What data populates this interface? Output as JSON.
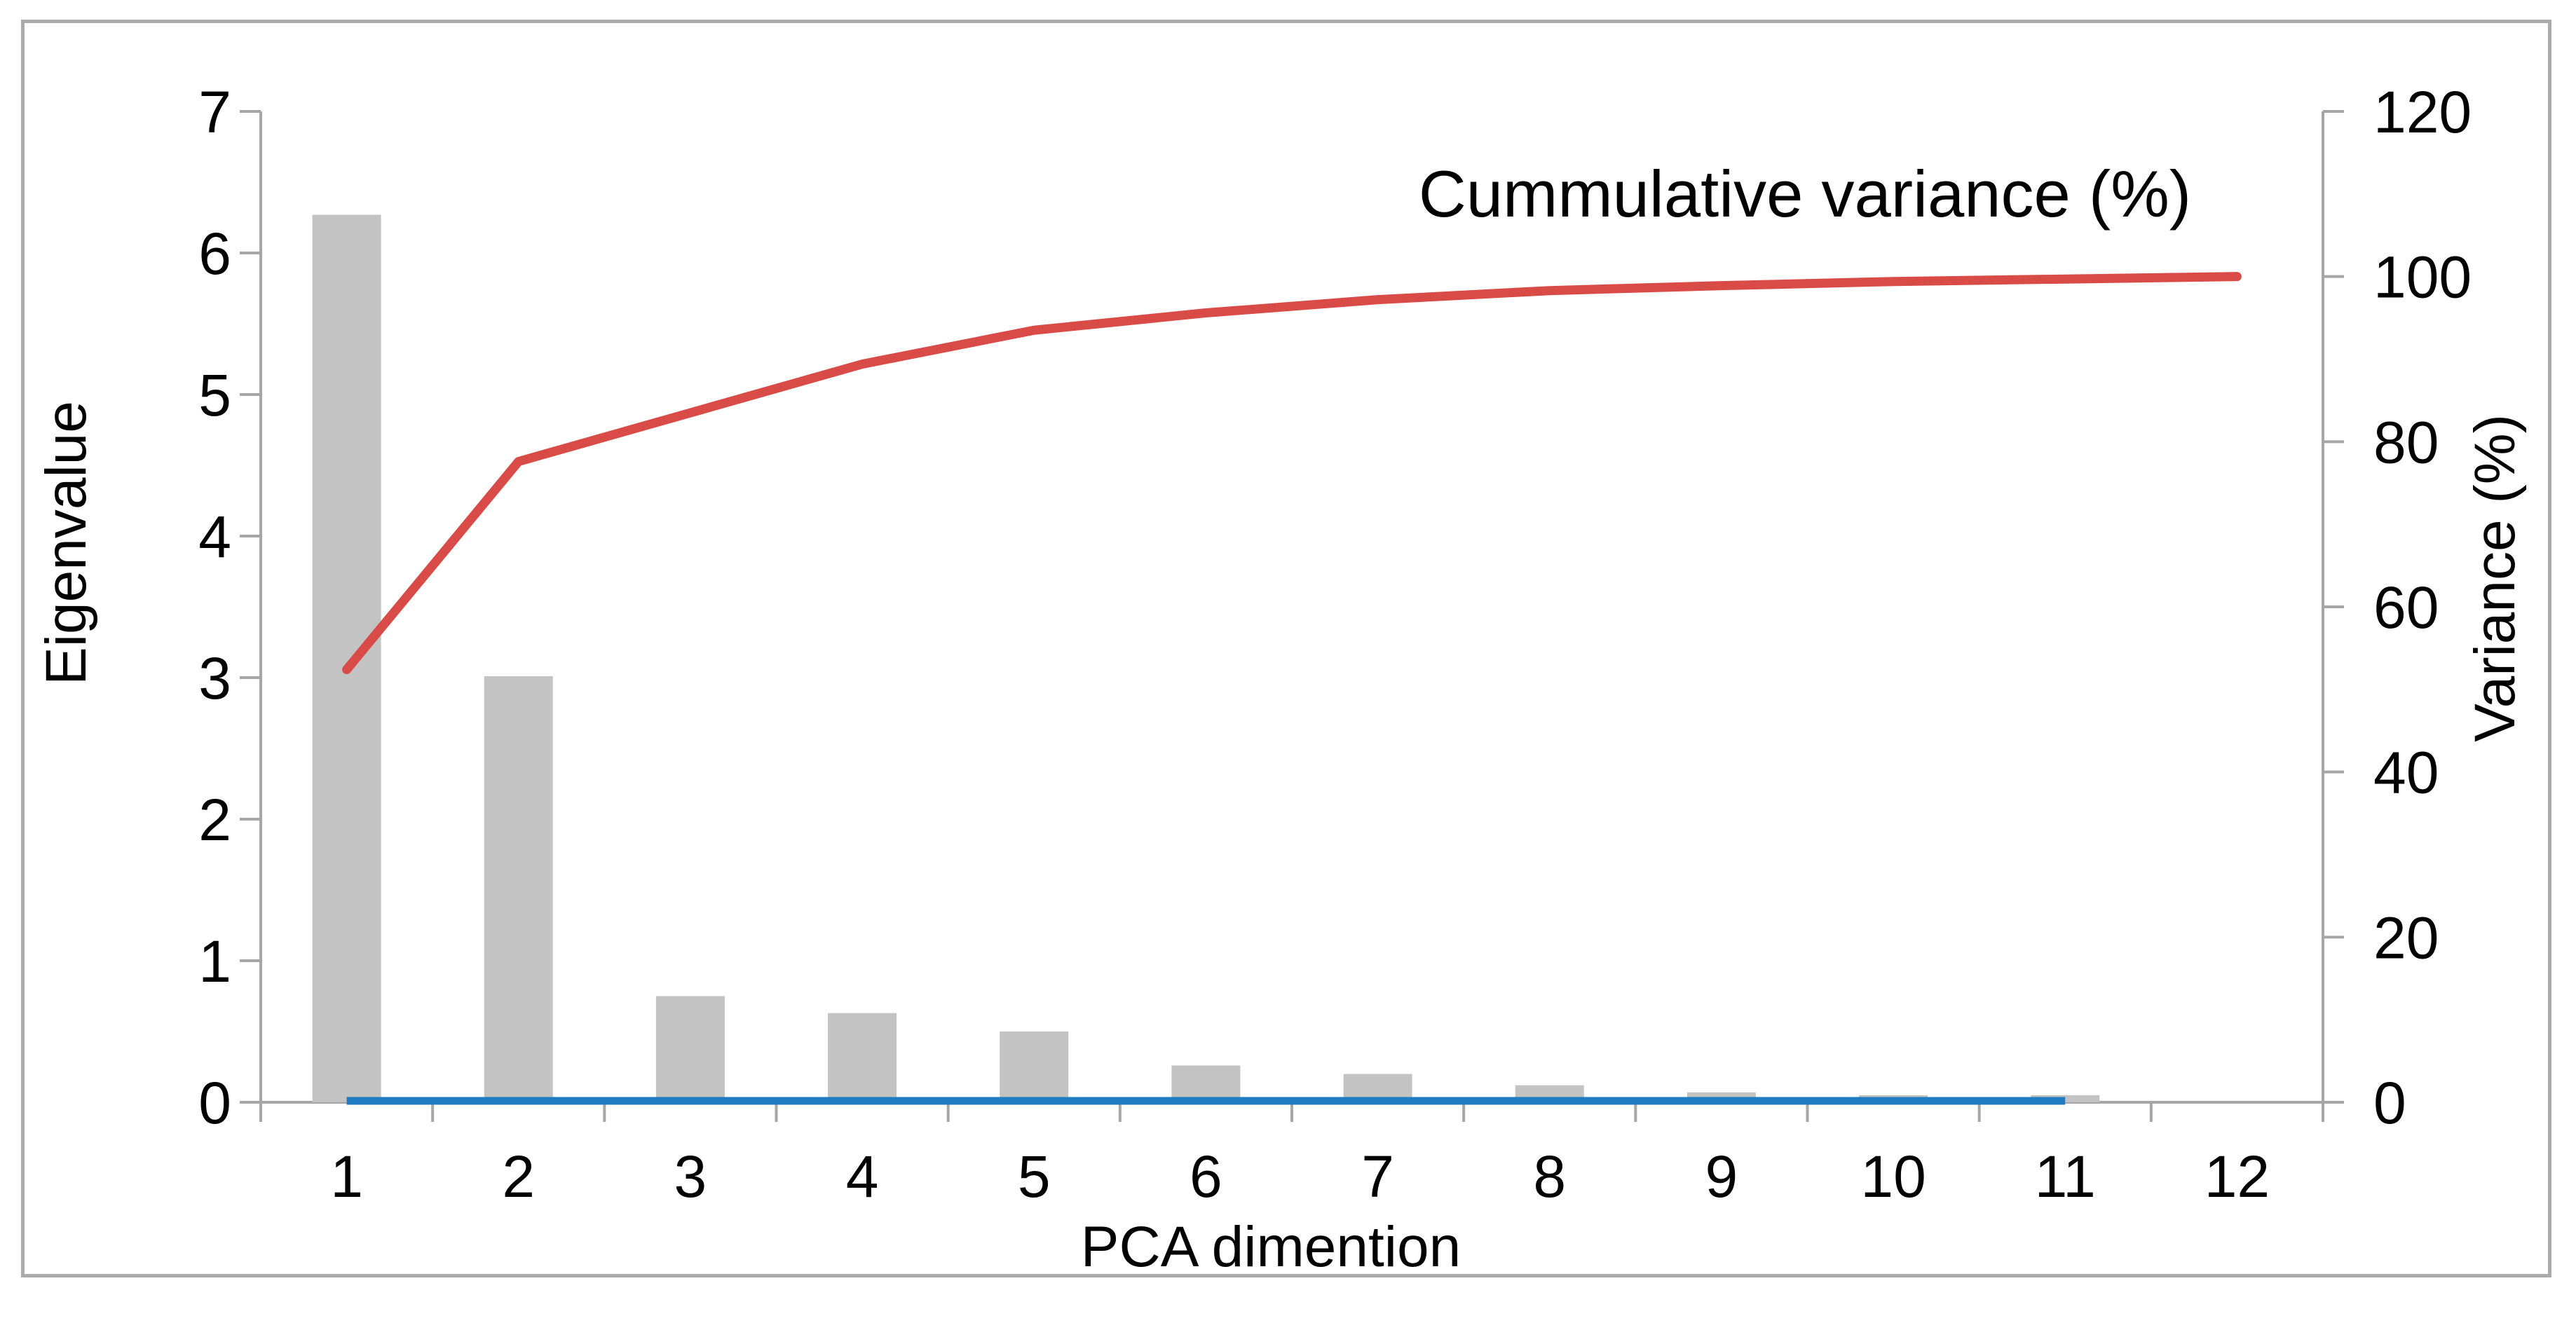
{
  "figure": {
    "title": "Cummulative variance (%)",
    "y_left_label": "Eigenvalue",
    "y_right_label": "Variance (%)",
    "x_label": "PCA dimention"
  },
  "chart_data": {
    "type": "combo",
    "categories": [
      "1",
      "2",
      "3",
      "4",
      "5",
      "6",
      "7",
      "8",
      "9",
      "10",
      "11",
      "12"
    ],
    "series": [
      {
        "name": "Eigenvalue",
        "type": "bar",
        "axis": "left",
        "values": [
          6.27,
          3.01,
          0.75,
          0.63,
          0.5,
          0.26,
          0.2,
          0.12,
          0.07,
          0.05,
          0.05,
          0.0
        ]
      },
      {
        "name": "Cummulative variance (%)",
        "type": "line",
        "axis": "right",
        "values": [
          52.4,
          77.6,
          83.5,
          89.4,
          93.5,
          95.6,
          97.2,
          98.3,
          98.9,
          99.4,
          99.7,
          100.0
        ]
      },
      {
        "name": "zero-baseline",
        "type": "line",
        "axis": "left",
        "span_categories": [
          1,
          11
        ],
        "values": [
          0,
          0,
          0,
          0,
          0,
          0,
          0,
          0,
          0,
          0,
          0
        ]
      }
    ],
    "axes": {
      "left": {
        "label": "Eigenvalue",
        "min": 0,
        "max": 7,
        "step": 1,
        "tick_labels": [
          "0",
          "1",
          "2",
          "3",
          "4",
          "5",
          "6",
          "7"
        ]
      },
      "right": {
        "label": "Variance (%)",
        "min": 0,
        "max": 120,
        "step": 20,
        "tick_labels": [
          "0",
          "20",
          "40",
          "60",
          "80",
          "100",
          "120"
        ]
      },
      "x": {
        "label": "PCA dimention",
        "tick_labels": [
          "1",
          "2",
          "3",
          "4",
          "5",
          "6",
          "7",
          "8",
          "9",
          "10",
          "11",
          "12"
        ]
      }
    },
    "title": "Cummulative variance (%)",
    "legend_position": "none",
    "grid": false
  },
  "colors": {
    "bar": "#c3c3c3",
    "cumulative_line": "#d94b47",
    "baseline": "#1f7bc2",
    "axis": "#a6a6a6",
    "text": "#000000",
    "figure_border": "#ababab",
    "background": "#ffffff"
  }
}
